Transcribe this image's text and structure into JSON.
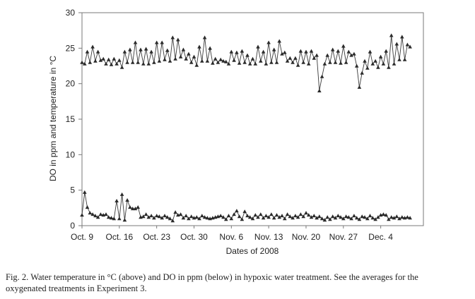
{
  "chart_data": {
    "type": "line",
    "xlabel": "Dates of 2008",
    "ylabel": "DO in ppm and temperature in °C",
    "ylim": [
      0,
      30
    ],
    "yticks": [
      0,
      5,
      10,
      15,
      20,
      25,
      30
    ],
    "xlim": [
      "2008-10-09",
      "2008-12-12"
    ],
    "xticks": [
      {
        "date": "2008-10-09",
        "label": "Oct. 9"
      },
      {
        "date": "2008-10-16",
        "label": "Oct. 16"
      },
      {
        "date": "2008-10-23",
        "label": "Oct. 23"
      },
      {
        "date": "2008-10-30",
        "label": "Oct. 30"
      },
      {
        "date": "2008-11-06",
        "label": "Nov. 6"
      },
      {
        "date": "2008-11-13",
        "label": "Nov. 13"
      },
      {
        "date": "2008-11-20",
        "label": "Nov. 20"
      },
      {
        "date": "2008-11-27",
        "label": "Nov. 27"
      },
      {
        "date": "2008-12-04",
        "label": "Dec. 4"
      }
    ],
    "grid": false,
    "line_color": "#3a3a3a",
    "marker": "triangle",
    "series": [
      {
        "key": "temperature",
        "points": [
          [
            "2008-10-09 00:00",
            23.0
          ],
          [
            "2008-10-09 12:00",
            22.8
          ],
          [
            "2008-10-10 00:00",
            24.5
          ],
          [
            "2008-10-10 12:00",
            23.0
          ],
          [
            "2008-10-11 00:00",
            25.2
          ],
          [
            "2008-10-11 12:00",
            23.2
          ],
          [
            "2008-10-12 00:00",
            24.5
          ],
          [
            "2008-10-12 12:00",
            23.3
          ],
          [
            "2008-10-13 00:00",
            23.5
          ],
          [
            "2008-10-13 12:00",
            22.8
          ],
          [
            "2008-10-14 00:00",
            23.4
          ],
          [
            "2008-10-14 12:00",
            22.7
          ],
          [
            "2008-10-15 00:00",
            23.5
          ],
          [
            "2008-10-15 12:00",
            22.8
          ],
          [
            "2008-10-16 00:00",
            23.3
          ],
          [
            "2008-10-16 12:00",
            22.3
          ],
          [
            "2008-10-17 00:00",
            24.5
          ],
          [
            "2008-10-17 12:00",
            23.0
          ],
          [
            "2008-10-18 00:00",
            24.8
          ],
          [
            "2008-10-18 12:00",
            23.0
          ],
          [
            "2008-10-19 00:00",
            25.8
          ],
          [
            "2008-10-19 12:00",
            23.0
          ],
          [
            "2008-10-20 00:00",
            24.8
          ],
          [
            "2008-10-20 12:00",
            22.8
          ],
          [
            "2008-10-21 00:00",
            24.9
          ],
          [
            "2008-10-21 12:00",
            22.8
          ],
          [
            "2008-10-22 00:00",
            24.5
          ],
          [
            "2008-10-22 12:00",
            23.0
          ],
          [
            "2008-10-23 00:00",
            25.8
          ],
          [
            "2008-10-23 12:00",
            23.2
          ],
          [
            "2008-10-24 00:00",
            25.8
          ],
          [
            "2008-10-24 12:00",
            23.4
          ],
          [
            "2008-10-25 00:00",
            24.7
          ],
          [
            "2008-10-25 12:00",
            23.2
          ],
          [
            "2008-10-26 00:00",
            26.5
          ],
          [
            "2008-10-26 12:00",
            23.5
          ],
          [
            "2008-10-27 00:00",
            26.2
          ],
          [
            "2008-10-27 12:00",
            23.8
          ],
          [
            "2008-10-28 00:00",
            24.8
          ],
          [
            "2008-10-28 12:00",
            23.5
          ],
          [
            "2008-10-29 00:00",
            24.2
          ],
          [
            "2008-10-29 12:00",
            23.0
          ],
          [
            "2008-10-30 00:00",
            23.8
          ],
          [
            "2008-10-30 12:00",
            22.6
          ],
          [
            "2008-10-31 00:00",
            25.2
          ],
          [
            "2008-10-31 12:00",
            23.2
          ],
          [
            "2008-11-01 00:00",
            26.5
          ],
          [
            "2008-11-01 12:00",
            23.2
          ],
          [
            "2008-11-02 00:00",
            25.0
          ],
          [
            "2008-11-02 12:00",
            22.9
          ],
          [
            "2008-11-03 00:00",
            23.5
          ],
          [
            "2008-11-03 12:00",
            23.0
          ],
          [
            "2008-11-04 00:00",
            23.4
          ],
          [
            "2008-11-04 12:00",
            23.2
          ],
          [
            "2008-11-05 00:00",
            23.1
          ],
          [
            "2008-11-05 12:00",
            22.8
          ],
          [
            "2008-11-06 00:00",
            24.5
          ],
          [
            "2008-11-06 12:00",
            23.3
          ],
          [
            "2008-11-07 00:00",
            24.4
          ],
          [
            "2008-11-07 12:00",
            22.9
          ],
          [
            "2008-11-08 00:00",
            24.6
          ],
          [
            "2008-11-08 12:00",
            23.0
          ],
          [
            "2008-11-09 00:00",
            24.0
          ],
          [
            "2008-11-09 12:00",
            22.8
          ],
          [
            "2008-11-10 00:00",
            23.5
          ],
          [
            "2008-11-10 12:00",
            22.8
          ],
          [
            "2008-11-11 00:00",
            25.2
          ],
          [
            "2008-11-11 12:00",
            23.2
          ],
          [
            "2008-11-12 00:00",
            24.5
          ],
          [
            "2008-11-12 12:00",
            22.8
          ],
          [
            "2008-11-13 00:00",
            25.8
          ],
          [
            "2008-11-13 12:00",
            23.0
          ],
          [
            "2008-11-14 00:00",
            24.8
          ],
          [
            "2008-11-14 12:00",
            23.0
          ],
          [
            "2008-11-15 00:00",
            26.0
          ],
          [
            "2008-11-15 12:00",
            24.2
          ],
          [
            "2008-11-16 00:00",
            24.4
          ],
          [
            "2008-11-16 12:00",
            23.2
          ],
          [
            "2008-11-17 00:00",
            23.6
          ],
          [
            "2008-11-17 12:00",
            23.0
          ],
          [
            "2008-11-18 00:00",
            23.6
          ],
          [
            "2008-11-18 12:00",
            22.6
          ],
          [
            "2008-11-19 00:00",
            24.6
          ],
          [
            "2008-11-19 12:00",
            23.0
          ],
          [
            "2008-11-20 00:00",
            24.5
          ],
          [
            "2008-11-20 12:00",
            22.8
          ],
          [
            "2008-11-21 00:00",
            24.6
          ],
          [
            "2008-11-21 12:00",
            23.6
          ],
          [
            "2008-11-22 00:00",
            24.0
          ],
          [
            "2008-11-22 12:00",
            19.0
          ],
          [
            "2008-11-23 00:00",
            21.0
          ],
          [
            "2008-11-23 12:00",
            22.8
          ],
          [
            "2008-11-24 00:00",
            24.0
          ],
          [
            "2008-11-24 12:00",
            23.0
          ],
          [
            "2008-11-25 00:00",
            24.8
          ],
          [
            "2008-11-25 12:00",
            23.0
          ],
          [
            "2008-11-26 00:00",
            24.6
          ],
          [
            "2008-11-26 12:00",
            22.9
          ],
          [
            "2008-11-27 00:00",
            25.3
          ],
          [
            "2008-11-27 12:00",
            23.0
          ],
          [
            "2008-11-28 00:00",
            24.5
          ],
          [
            "2008-11-28 12:00",
            24.0
          ],
          [
            "2008-11-29 00:00",
            24.2
          ],
          [
            "2008-11-29 12:00",
            22.5
          ],
          [
            "2008-11-30 00:00",
            19.5
          ],
          [
            "2008-11-30 12:00",
            21.5
          ],
          [
            "2008-12-01 00:00",
            23.2
          ],
          [
            "2008-12-01 12:00",
            22.2
          ],
          [
            "2008-12-02 00:00",
            24.5
          ],
          [
            "2008-12-02 12:00",
            22.8
          ],
          [
            "2008-12-03 00:00",
            23.2
          ],
          [
            "2008-12-03 12:00",
            22.3
          ],
          [
            "2008-12-04 00:00",
            23.8
          ],
          [
            "2008-12-04 12:00",
            22.8
          ],
          [
            "2008-12-05 00:00",
            24.6
          ],
          [
            "2008-12-05 12:00",
            22.3
          ],
          [
            "2008-12-06 00:00",
            26.8
          ],
          [
            "2008-12-06 12:00",
            22.8
          ],
          [
            "2008-12-07 00:00",
            25.6
          ],
          [
            "2008-12-07 12:00",
            23.4
          ],
          [
            "2008-12-08 00:00",
            26.6
          ],
          [
            "2008-12-08 12:00",
            23.4
          ],
          [
            "2008-12-09 00:00",
            25.5
          ],
          [
            "2008-12-09 12:00",
            25.2
          ]
        ]
      },
      {
        "key": "do",
        "points": [
          [
            "2008-10-09 00:00",
            1.5
          ],
          [
            "2008-10-09 12:00",
            4.7
          ],
          [
            "2008-10-10 00:00",
            2.6
          ],
          [
            "2008-10-10 12:00",
            1.8
          ],
          [
            "2008-10-11 00:00",
            1.6
          ],
          [
            "2008-10-11 12:00",
            1.4
          ],
          [
            "2008-10-12 00:00",
            1.2
          ],
          [
            "2008-10-12 12:00",
            1.6
          ],
          [
            "2008-10-13 00:00",
            1.5
          ],
          [
            "2008-10-13 12:00",
            1.6
          ],
          [
            "2008-10-14 00:00",
            1.2
          ],
          [
            "2008-10-14 12:00",
            1.1
          ],
          [
            "2008-10-15 00:00",
            1.0
          ],
          [
            "2008-10-15 12:00",
            3.5
          ],
          [
            "2008-10-16 00:00",
            1.0
          ],
          [
            "2008-10-16 12:00",
            4.4
          ],
          [
            "2008-10-17 00:00",
            0.8
          ],
          [
            "2008-10-17 12:00",
            3.6
          ],
          [
            "2008-10-18 00:00",
            2.6
          ],
          [
            "2008-10-18 12:00",
            2.4
          ],
          [
            "2008-10-19 00:00",
            2.4
          ],
          [
            "2008-10-19 12:00",
            2.6
          ],
          [
            "2008-10-20 00:00",
            1.2
          ],
          [
            "2008-10-20 12:00",
            1.3
          ],
          [
            "2008-10-21 00:00",
            1.6
          ],
          [
            "2008-10-21 12:00",
            1.2
          ],
          [
            "2008-10-22 00:00",
            1.4
          ],
          [
            "2008-10-22 12:00",
            1.1
          ],
          [
            "2008-10-23 00:00",
            1.4
          ],
          [
            "2008-10-23 12:00",
            1.3
          ],
          [
            "2008-10-24 00:00",
            1.1
          ],
          [
            "2008-10-24 12:00",
            1.4
          ],
          [
            "2008-10-25 00:00",
            1.2
          ],
          [
            "2008-10-25 12:00",
            1.0
          ],
          [
            "2008-10-26 00:00",
            0.7
          ],
          [
            "2008-10-26 12:00",
            1.9
          ],
          [
            "2008-10-27 00:00",
            1.5
          ],
          [
            "2008-10-27 12:00",
            1.6
          ],
          [
            "2008-10-28 00:00",
            1.1
          ],
          [
            "2008-10-28 12:00",
            1.4
          ],
          [
            "2008-10-29 00:00",
            1.0
          ],
          [
            "2008-10-29 12:00",
            1.3
          ],
          [
            "2008-10-30 00:00",
            1.1
          ],
          [
            "2008-10-30 12:00",
            1.2
          ],
          [
            "2008-10-31 00:00",
            1.0
          ],
          [
            "2008-10-31 12:00",
            1.4
          ],
          [
            "2008-11-01 00:00",
            1.2
          ],
          [
            "2008-11-01 12:00",
            1.1
          ],
          [
            "2008-11-02 00:00",
            1.0
          ],
          [
            "2008-11-02 12:00",
            1.1
          ],
          [
            "2008-11-03 00:00",
            1.2
          ],
          [
            "2008-11-03 12:00",
            1.3
          ],
          [
            "2008-11-04 00:00",
            1.4
          ],
          [
            "2008-11-04 12:00",
            1.2
          ],
          [
            "2008-11-05 00:00",
            0.9
          ],
          [
            "2008-11-05 12:00",
            1.4
          ],
          [
            "2008-11-06 00:00",
            1.0
          ],
          [
            "2008-11-06 12:00",
            1.6
          ],
          [
            "2008-11-07 00:00",
            2.1
          ],
          [
            "2008-11-07 12:00",
            1.3
          ],
          [
            "2008-11-08 00:00",
            0.9
          ],
          [
            "2008-11-08 12:00",
            2.0
          ],
          [
            "2008-11-09 00:00",
            1.4
          ],
          [
            "2008-11-09 12:00",
            1.2
          ],
          [
            "2008-11-10 00:00",
            1.0
          ],
          [
            "2008-11-10 12:00",
            1.5
          ],
          [
            "2008-11-11 00:00",
            1.2
          ],
          [
            "2008-11-11 12:00",
            1.6
          ],
          [
            "2008-11-12 00:00",
            1.1
          ],
          [
            "2008-11-12 12:00",
            1.4
          ],
          [
            "2008-11-13 00:00",
            1.2
          ],
          [
            "2008-11-13 12:00",
            1.6
          ],
          [
            "2008-11-14 00:00",
            1.1
          ],
          [
            "2008-11-14 12:00",
            1.5
          ],
          [
            "2008-11-15 00:00",
            1.2
          ],
          [
            "2008-11-15 12:00",
            1.4
          ],
          [
            "2008-11-16 00:00",
            1.0
          ],
          [
            "2008-11-16 12:00",
            1.6
          ],
          [
            "2008-11-17 00:00",
            1.3
          ],
          [
            "2008-11-17 12:00",
            1.1
          ],
          [
            "2008-11-18 00:00",
            1.4
          ],
          [
            "2008-11-18 12:00",
            1.2
          ],
          [
            "2008-11-19 00:00",
            1.6
          ],
          [
            "2008-11-19 12:00",
            1.3
          ],
          [
            "2008-11-20 00:00",
            1.8
          ],
          [
            "2008-11-20 12:00",
            1.5
          ],
          [
            "2008-11-21 00:00",
            1.2
          ],
          [
            "2008-11-21 12:00",
            1.4
          ],
          [
            "2008-11-22 00:00",
            1.1
          ],
          [
            "2008-11-22 12:00",
            1.3
          ],
          [
            "2008-11-23 00:00",
            1.0
          ],
          [
            "2008-11-23 12:00",
            0.8
          ],
          [
            "2008-11-24 00:00",
            1.2
          ],
          [
            "2008-11-24 12:00",
            0.9
          ],
          [
            "2008-11-25 00:00",
            1.3
          ],
          [
            "2008-11-25 12:00",
            1.1
          ],
          [
            "2008-11-26 00:00",
            1.4
          ],
          [
            "2008-11-26 12:00",
            1.2
          ],
          [
            "2008-11-27 00:00",
            1.0
          ],
          [
            "2008-11-27 12:00",
            1.3
          ],
          [
            "2008-11-28 00:00",
            1.2
          ],
          [
            "2008-11-28 12:00",
            1.0
          ],
          [
            "2008-11-29 00:00",
            1.4
          ],
          [
            "2008-11-29 12:00",
            1.1
          ],
          [
            "2008-11-30 00:00",
            0.9
          ],
          [
            "2008-11-30 12:00",
            1.3
          ],
          [
            "2008-12-01 00:00",
            1.2
          ],
          [
            "2008-12-01 12:00",
            1.0
          ],
          [
            "2008-12-02 00:00",
            1.4
          ],
          [
            "2008-12-02 12:00",
            1.1
          ],
          [
            "2008-12-03 00:00",
            0.9
          ],
          [
            "2008-12-03 12:00",
            1.2
          ],
          [
            "2008-12-04 00:00",
            1.5
          ],
          [
            "2008-12-04 12:00",
            1.6
          ],
          [
            "2008-12-05 00:00",
            1.5
          ],
          [
            "2008-12-05 12:00",
            0.9
          ],
          [
            "2008-12-06 00:00",
            1.2
          ],
          [
            "2008-12-06 12:00",
            1.1
          ],
          [
            "2008-12-07 00:00",
            1.3
          ],
          [
            "2008-12-07 12:00",
            1.0
          ],
          [
            "2008-12-08 00:00",
            1.2
          ],
          [
            "2008-12-08 12:00",
            1.1
          ],
          [
            "2008-12-09 00:00",
            1.2
          ],
          [
            "2008-12-09 12:00",
            1.1
          ]
        ]
      }
    ]
  },
  "caption": {
    "line1": "Fig. 2. Water temperature in °C (above) and DO in ppm (below) in hypoxic water treatment. See the averages for the",
    "line2": "oxygenated treatments in Experiment 3."
  }
}
